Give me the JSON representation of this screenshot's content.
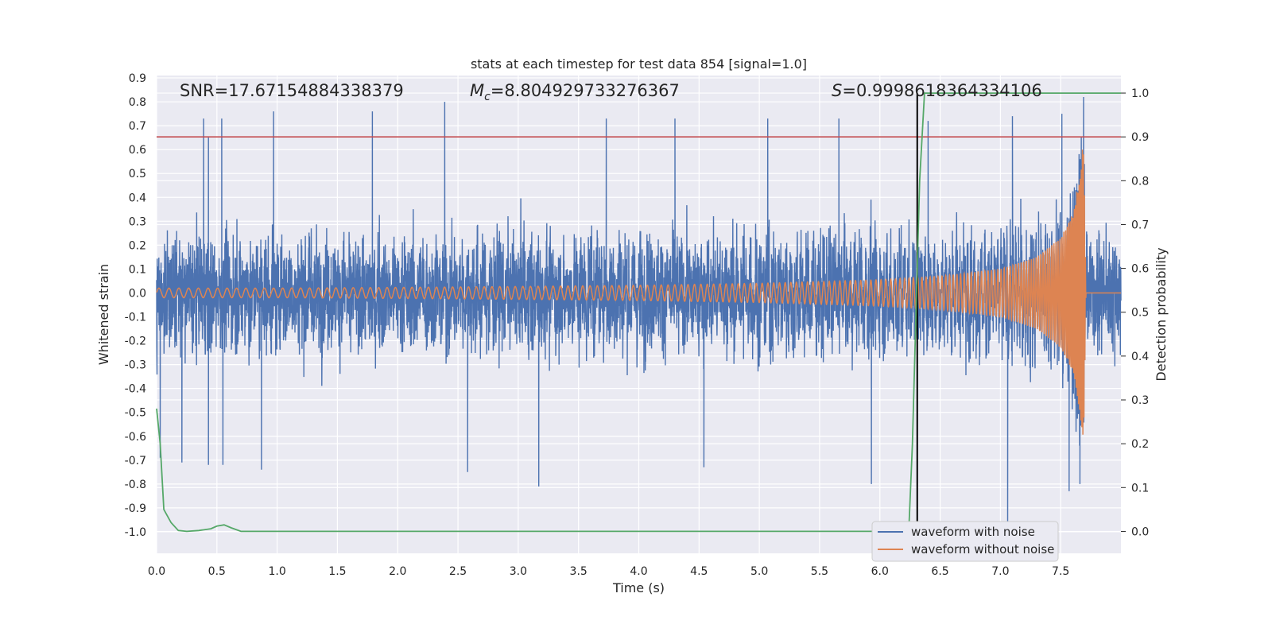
{
  "chart_data": {
    "type": "line",
    "title": "stats at each timestep for test data 854 [signal=1.0]",
    "xlabel": "Time (s)",
    "ylabel_left": "Whitened strain",
    "ylabel_right": "Detection probability",
    "xlim": [
      0.0,
      8.0
    ],
    "ylim_left": [
      -1.09,
      0.91
    ],
    "ylim_right": [
      -0.05,
      1.04
    ],
    "x_ticks": [
      "0.0",
      "0.5",
      "1.0",
      "1.5",
      "2.0",
      "2.5",
      "3.0",
      "3.5",
      "4.0",
      "4.5",
      "5.0",
      "5.5",
      "6.0",
      "6.5",
      "7.0",
      "7.5"
    ],
    "y_left_ticks": [
      "0.9",
      "0.8",
      "0.7",
      "0.6",
      "0.5",
      "0.4",
      "0.3",
      "0.2",
      "0.1",
      "0.0",
      "-0.1",
      "-0.2",
      "-0.3",
      "-0.4",
      "-0.5",
      "-0.6",
      "-0.7",
      "-0.8",
      "-0.9",
      "-1.0"
    ],
    "y_right_ticks": [
      "1.0",
      "0.9",
      "0.8",
      "0.7",
      "0.6",
      "0.5",
      "0.4",
      "0.3",
      "0.2",
      "0.1",
      "0.0"
    ],
    "annotations": {
      "snr": "SNR=17.67154884338379",
      "mc_symbol": "M",
      "mc_subscript": "c",
      "mc_value": "=8.804929733276367",
      "s_symbol": "S",
      "s_value": "=0.9998618364334106"
    },
    "threshold_line": {
      "axis": "right",
      "value": 0.9,
      "color": "#c44e52"
    },
    "detection_time_line": {
      "x": 6.31,
      "color": "#000000"
    },
    "series": [
      {
        "name": "waveform with noise",
        "color": "#4c72b0",
        "axis": "left",
        "description_values": {
          "typical_amplitude": 0.3,
          "max": 0.82,
          "min": -1.02
        },
        "peaks": [
          [
            0.39,
            0.73
          ],
          [
            0.43,
            0.65
          ],
          [
            0.54,
            0.73
          ],
          [
            0.97,
            0.76
          ],
          [
            1.79,
            0.76
          ],
          [
            2.39,
            0.8
          ],
          [
            3.73,
            0.73
          ],
          [
            4.3,
            0.73
          ],
          [
            5.07,
            0.73
          ],
          [
            5.66,
            0.73
          ],
          [
            6.4,
            0.72
          ],
          [
            7.1,
            0.74
          ],
          [
            7.69,
            0.82
          ],
          [
            7.51,
            0.75
          ]
        ],
        "troughs": [
          [
            0.03,
            -0.69
          ],
          [
            0.21,
            -0.71
          ],
          [
            0.43,
            -0.72
          ],
          [
            0.55,
            -0.72
          ],
          [
            0.87,
            -0.74
          ],
          [
            2.58,
            -0.75
          ],
          [
            3.17,
            -0.81
          ],
          [
            4.54,
            -0.73
          ],
          [
            5.93,
            -0.8
          ],
          [
            7.06,
            -1.02
          ],
          [
            7.57,
            -0.83
          ],
          [
            7.66,
            -0.8
          ]
        ]
      },
      {
        "name": "waveform without noise",
        "color": "#dd8452",
        "axis": "left",
        "envelope": [
          [
            0.0,
            0.02
          ],
          [
            1.0,
            0.02
          ],
          [
            2.0,
            0.023
          ],
          [
            3.0,
            0.027
          ],
          [
            4.0,
            0.032
          ],
          [
            5.0,
            0.04
          ],
          [
            6.0,
            0.055
          ],
          [
            6.5,
            0.07
          ],
          [
            7.0,
            0.1
          ],
          [
            7.3,
            0.15
          ],
          [
            7.5,
            0.23
          ],
          [
            7.6,
            0.33
          ],
          [
            7.66,
            0.5
          ],
          [
            7.69,
            0.65
          ],
          [
            7.71,
            0.0
          ],
          [
            8.0,
            0.0
          ]
        ],
        "frequency_hz": [
          [
            0.0,
            12
          ],
          [
            4.0,
            17
          ],
          [
            6.0,
            24
          ],
          [
            7.0,
            38
          ],
          [
            7.5,
            60
          ],
          [
            7.7,
            120
          ]
        ]
      },
      {
        "name": "detection probability",
        "color": "#55a868",
        "axis": "right",
        "points": [
          [
            0.0,
            0.28
          ],
          [
            0.03,
            0.2
          ],
          [
            0.06,
            0.05
          ],
          [
            0.12,
            0.02
          ],
          [
            0.18,
            0.002
          ],
          [
            0.25,
            0.0
          ],
          [
            0.35,
            0.002
          ],
          [
            0.45,
            0.006
          ],
          [
            0.5,
            0.012
          ],
          [
            0.56,
            0.015
          ],
          [
            0.62,
            0.008
          ],
          [
            0.7,
            0.0
          ],
          [
            1.0,
            0.0
          ],
          [
            3.0,
            0.0
          ],
          [
            5.0,
            0.0
          ],
          [
            6.0,
            0.0
          ],
          [
            6.24,
            0.0
          ],
          [
            6.27,
            0.2
          ],
          [
            6.3,
            0.5
          ],
          [
            6.33,
            0.8
          ],
          [
            6.37,
            1.0
          ],
          [
            6.5,
            1.0
          ],
          [
            7.0,
            1.0
          ],
          [
            8.0,
            1.0
          ]
        ]
      }
    ],
    "legend": {
      "placement": "lower-right",
      "entries": [
        "waveform with noise",
        "waveform without noise"
      ]
    },
    "colors": {
      "plot_background": "#eaeaf2",
      "grid": "#ffffff",
      "text": "#262626"
    }
  }
}
